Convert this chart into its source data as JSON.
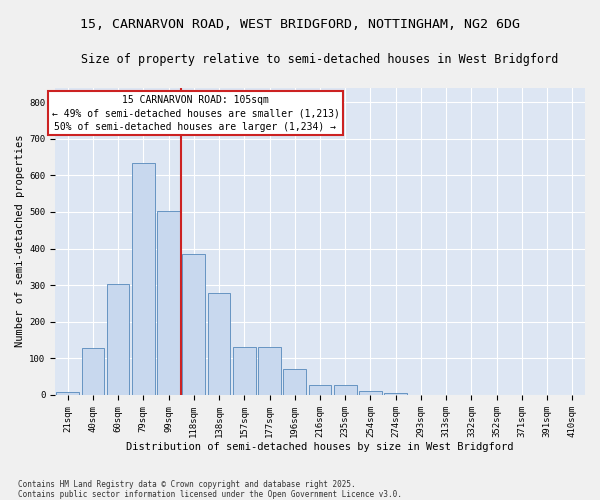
{
  "title_line1": "15, CARNARVON ROAD, WEST BRIDGFORD, NOTTINGHAM, NG2 6DG",
  "title_line2": "Size of property relative to semi-detached houses in West Bridgford",
  "xlabel": "Distribution of semi-detached houses by size in West Bridgford",
  "ylabel": "Number of semi-detached properties",
  "footnote": "Contains HM Land Registry data © Crown copyright and database right 2025.\nContains public sector information licensed under the Open Government Licence v3.0.",
  "bin_labels": [
    "21sqm",
    "40sqm",
    "60sqm",
    "79sqm",
    "99sqm",
    "118sqm",
    "138sqm",
    "157sqm",
    "177sqm",
    "196sqm",
    "216sqm",
    "235sqm",
    "254sqm",
    "274sqm",
    "293sqm",
    "313sqm",
    "332sqm",
    "352sqm",
    "371sqm",
    "391sqm",
    "410sqm"
  ],
  "bar_values": [
    8,
    128,
    302,
    635,
    503,
    384,
    278,
    130,
    130,
    70,
    28,
    28,
    12,
    6,
    0,
    0,
    0,
    0,
    0,
    0,
    0
  ],
  "bar_color": "#c8d8ee",
  "bar_edge_color": "#5588bb",
  "vline_color": "#cc2222",
  "vline_x": 4.5,
  "annotation_text": "15 CARNARVON ROAD: 105sqm\n← 49% of semi-detached houses are smaller (1,213)\n50% of semi-detached houses are larger (1,234) →",
  "annotation_box_edgecolor": "#cc2222",
  "ylim_max": 840,
  "ytick_values": [
    0,
    100,
    200,
    300,
    400,
    500,
    600,
    700,
    800
  ],
  "background_color": "#dde6f3",
  "grid_color": "#ffffff",
  "fig_bg": "#f0f0f0",
  "title_fontsize": 9.5,
  "subtitle_fontsize": 8.5,
  "axis_label_fontsize": 7.5,
  "tick_fontsize": 6.5,
  "annotation_fontsize": 7,
  "ylabel_text": "Number of semi-detached properties"
}
